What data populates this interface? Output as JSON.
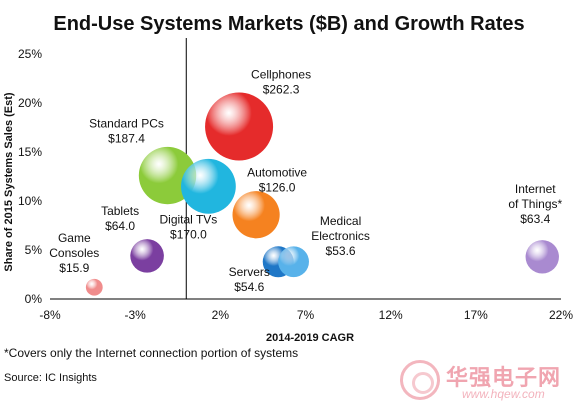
{
  "chart_data": {
    "type": "scatter",
    "title": "End-Use Systems Markets ($B) and Growth Rates",
    "xlabel": "2014-2019 CAGR",
    "ylabel": "Share of 2015 Systems Sales (Est)",
    "xlim": [
      -8,
      22
    ],
    "ylim": [
      0,
      25
    ],
    "x_ticks": [
      "-8%",
      "-3%",
      "2%",
      "7%",
      "12%",
      "17%",
      "22%"
    ],
    "y_ticks": [
      "0%",
      "5%",
      "10%",
      "15%",
      "20%",
      "25%"
    ],
    "grid": false,
    "size_field": "market_billions",
    "series": [
      {
        "label": [
          "Cellphones",
          "$262.3"
        ],
        "market_billions": 262.3,
        "x": 3.1,
        "y": 17.6,
        "color": "#e52b2b"
      },
      {
        "label": [
          "Standard PCs",
          "$187.4"
        ],
        "market_billions": 187.4,
        "x": -1.1,
        "y": 12.6,
        "color": "#8ccb3a"
      },
      {
        "label": [
          "Digital TVs",
          "$170.0"
        ],
        "market_billions": 170.0,
        "x": 1.3,
        "y": 11.5,
        "color": "#21b6df"
      },
      {
        "label": [
          "Automotive",
          "$126.0"
        ],
        "market_billions": 126.0,
        "x": 4.1,
        "y": 8.6,
        "color": "#f58220"
      },
      {
        "label": [
          "Tablets",
          "$64.0"
        ],
        "market_billions": 64.0,
        "x": -2.3,
        "y": 4.4,
        "color": "#7b3fa0"
      },
      {
        "label": [
          "Game",
          "Consoles",
          "$15.9"
        ],
        "market_billions": 15.9,
        "x": -5.4,
        "y": 1.2,
        "color": "#f08c8c"
      },
      {
        "label": [
          "Servers",
          "$54.6"
        ],
        "market_billions": 54.6,
        "x": 5.4,
        "y": 3.8,
        "color": "#1f77c7"
      },
      {
        "label": [
          "Medical",
          "Electronics",
          "$53.6"
        ],
        "market_billions": 53.6,
        "x": 6.3,
        "y": 3.8,
        "color": "#58b2ea"
      },
      {
        "label": [
          "Internet",
          "of Things*",
          "$63.4"
        ],
        "market_billions": 63.4,
        "x": 20.9,
        "y": 4.3,
        "color": "#a98ad0"
      }
    ],
    "footnote": "*Covers only the Internet connection portion of systems",
    "source": "Source: IC Insights"
  },
  "watermark": {
    "text": "华强电子网",
    "url": "www.hqew.com",
    "color": "#f0a5b0"
  }
}
